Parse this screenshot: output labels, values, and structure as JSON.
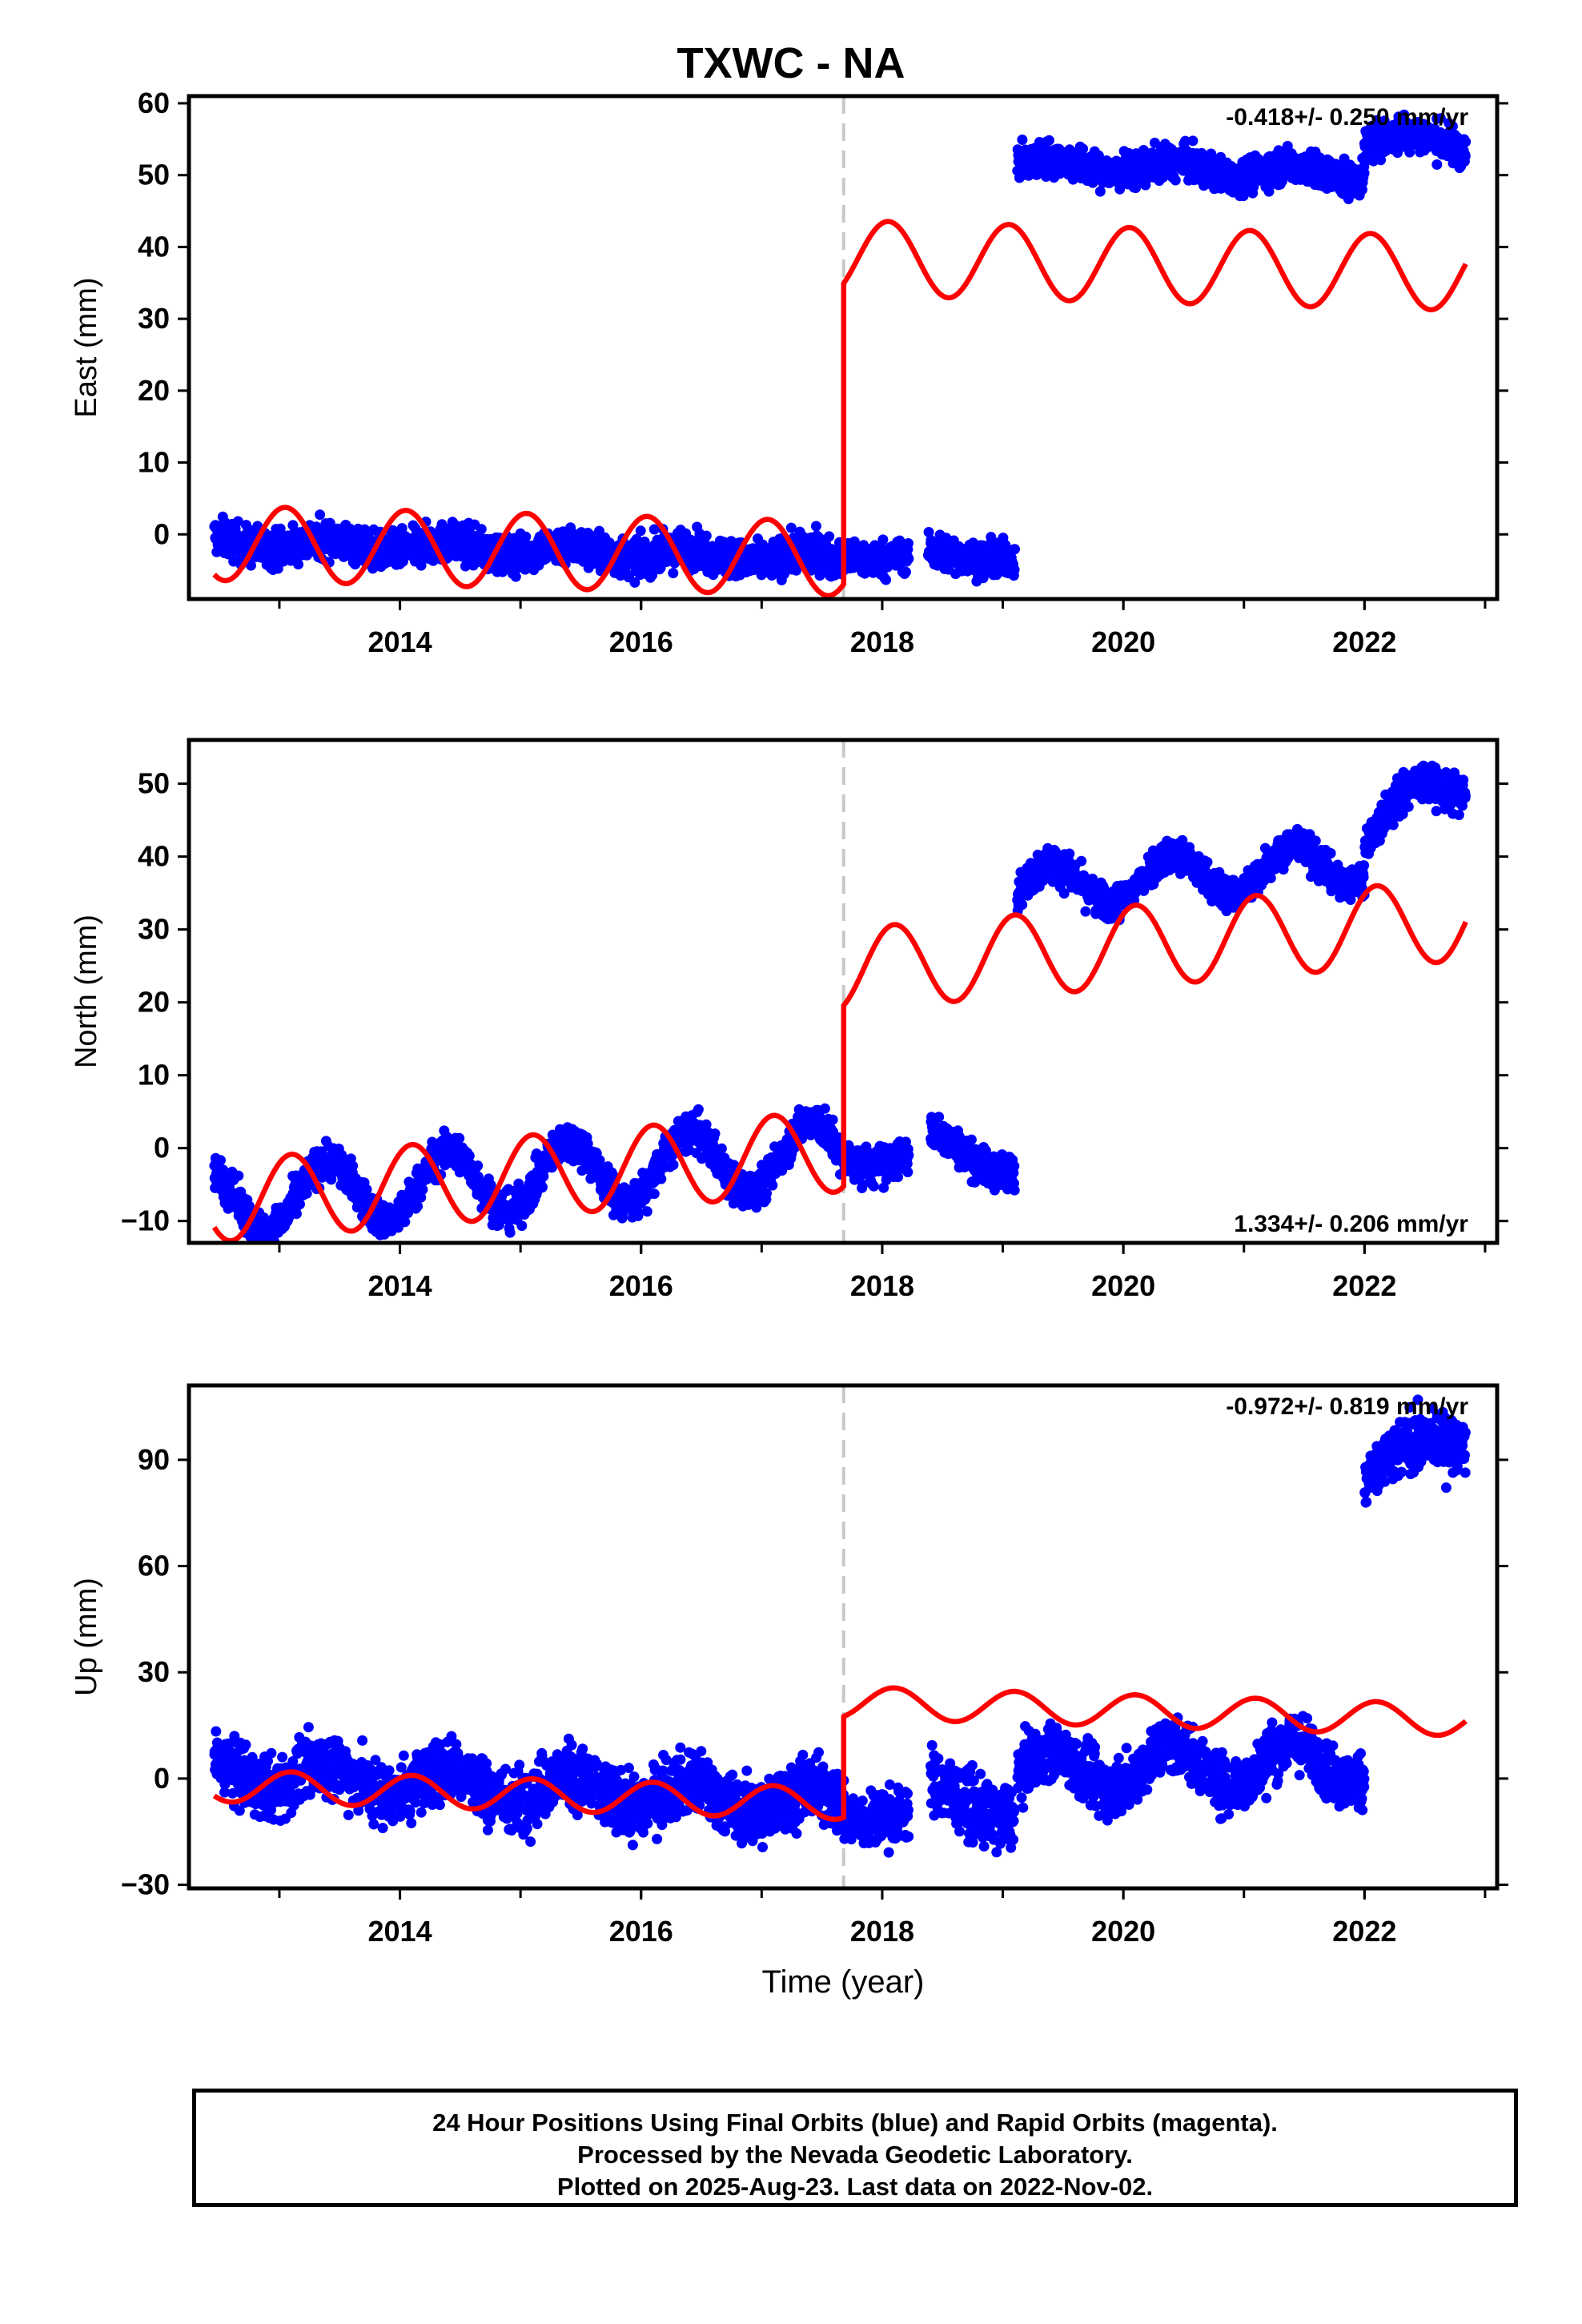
{
  "title": "TXWC - NA",
  "footer": {
    "line1": "24 Hour Positions Using Final Orbits (blue) and Rapid Orbits (magenta).",
    "line2": "Processed by the Nevada Geodetic Laboratory.",
    "line3": "Plotted on 2025-Aug-23. Last data on 2022-Nov-02."
  },
  "xlabel": "Time (year)",
  "colors": {
    "data": "#0000ff",
    "model": "#ff0000",
    "step": "#c8c8c8"
  },
  "chart_data": [
    {
      "type": "scatter",
      "ylabel": "East (mm)",
      "xlim": [
        2012.25,
        2023.1
      ],
      "ylim": [
        -9,
        61
      ],
      "yticks": [
        0,
        10,
        20,
        30,
        40,
        50,
        60
      ],
      "xticks": [
        2014,
        2016,
        2018,
        2020,
        2022
      ],
      "rate": "-0.418+/- 0.250 mm/yr",
      "rate_position": "top-right",
      "step_year": 2017.68,
      "data_segments": [
        {
          "start": 2012.46,
          "end": 2017.68,
          "base": -1.0,
          "slope": -0.45,
          "amp": 0.8,
          "noise": 1.3
        },
        {
          "start": 2017.68,
          "end": 2018.22,
          "base": -3.0,
          "slope": 0.0,
          "amp": 0.5,
          "noise": 1.2
        },
        {
          "start": 2018.38,
          "end": 2019.1,
          "base": -3.0,
          "slope": 0.0,
          "amp": 0.6,
          "noise": 1.2
        },
        {
          "start": 2019.12,
          "end": 2022.0,
          "base": 51.5,
          "slope": -0.45,
          "amp": 0.9,
          "noise": 1.2
        },
        {
          "start": 2022.0,
          "end": 2022.84,
          "base": 55.0,
          "slope": -0.5,
          "amp": 1.0,
          "noise": 1.3
        }
      ],
      "model_segments": [
        {
          "start": 2012.46,
          "end": 2017.68,
          "base": -1.2,
          "slope": -0.418,
          "amp": 5.2,
          "phase": 0.05
        },
        {
          "start": 2017.68,
          "end": 2022.84,
          "base": 38.5,
          "slope": -0.418,
          "amp": 5.2,
          "phase": 0.05
        }
      ]
    },
    {
      "type": "scatter",
      "ylabel": "North (mm)",
      "xlim": [
        2012.25,
        2023.1
      ],
      "ylim": [
        -13,
        56
      ],
      "yticks": [
        -10,
        0,
        10,
        20,
        30,
        40,
        50
      ],
      "xticks": [
        2014,
        2016,
        2018,
        2020,
        2022
      ],
      "rate": "1.334+/- 0.206 mm/yr",
      "rate_position": "bottom-right",
      "step_year": 2017.68,
      "data_segments": [
        {
          "start": 2012.46,
          "end": 2017.68,
          "base": -7.5,
          "slope": 1.334,
          "amp": 4.5,
          "noise": 1.3
        },
        {
          "start": 2017.68,
          "end": 2018.22,
          "base": -1.5,
          "slope": 0.0,
          "amp": 1.0,
          "noise": 1.3
        },
        {
          "start": 2018.4,
          "end": 2019.1,
          "base": 1.0,
          "slope": -5.0,
          "amp": 1.5,
          "noise": 1.2
        },
        {
          "start": 2019.12,
          "end": 2022.0,
          "base": 35.5,
          "slope": 1.334,
          "amp": 3.0,
          "noise": 1.2
        },
        {
          "start": 2022.0,
          "end": 2022.84,
          "base": 44.0,
          "slope": 8.0,
          "amp": 2.5,
          "noise": 1.3
        }
      ],
      "model_segments": [
        {
          "start": 2012.46,
          "end": 2017.68,
          "base": -7.3,
          "slope": 1.334,
          "amp": 5.6,
          "phase": 0.1
        },
        {
          "start": 2017.68,
          "end": 2022.84,
          "base": 24.5,
          "slope": 1.334,
          "amp": 5.6,
          "phase": 0.1
        }
      ]
    },
    {
      "type": "scatter",
      "ylabel": "Up (mm)",
      "xlim": [
        2012.25,
        2023.1
      ],
      "ylim": [
        -31,
        111
      ],
      "yticks": [
        -30,
        0,
        30,
        60,
        90
      ],
      "xticks": [
        2014,
        2016,
        2018,
        2020,
        2022
      ],
      "rate": "-0.972+/- 0.819 mm/yr",
      "rate_position": "top-right",
      "step_year": 2017.68,
      "data_segments": [
        {
          "start": 2012.46,
          "end": 2017.68,
          "base": 2.0,
          "slope": -1.8,
          "amp": 4.0,
          "noise": 4.5
        },
        {
          "start": 2017.68,
          "end": 2018.22,
          "base": -10.0,
          "slope": 0.0,
          "amp": 2.0,
          "noise": 4.0
        },
        {
          "start": 2018.4,
          "end": 2019.1,
          "base": -4.0,
          "slope": -8.0,
          "amp": 3.0,
          "noise": 4.5
        },
        {
          "start": 2019.12,
          "end": 2022.0,
          "base": 2.0,
          "slope": 1.0,
          "amp": 6.0,
          "noise": 4.0
        },
        {
          "start": 2022.0,
          "end": 2022.84,
          "base": 87.0,
          "slope": 12.0,
          "amp": 3.0,
          "noise": 4.0
        }
      ],
      "model_segments": [
        {
          "start": 2012.46,
          "end": 2017.68,
          "base": -2.0,
          "slope": -0.972,
          "amp": 4.5,
          "phase": 0.1
        },
        {
          "start": 2017.68,
          "end": 2022.84,
          "base": 21.5,
          "slope": -0.972,
          "amp": 4.5,
          "phase": 0.1
        }
      ]
    }
  ]
}
